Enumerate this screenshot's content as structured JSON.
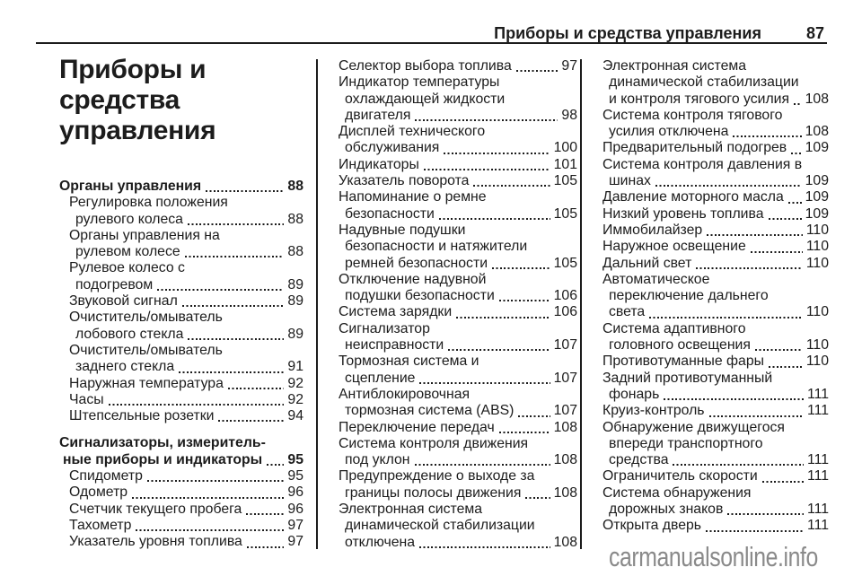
{
  "header": {
    "title": "Приборы и средства управления",
    "page_number": "87"
  },
  "chapter_title_lines": [
    "Приборы и",
    "средства",
    "управления"
  ],
  "colors": {
    "text": "#1c1c1c",
    "watermark": "#8a8a8a"
  },
  "watermark": "carmanualsonline.info",
  "columns": {
    "column1": [
      {
        "style": "main",
        "lines": [
          "Органы управления"
        ],
        "page": "88"
      },
      {
        "style": "sub",
        "lines": [
          "Регулировка положения",
          "рулевого колеса"
        ],
        "page": "88"
      },
      {
        "style": "sub",
        "lines": [
          "Органы управления на",
          "рулевом колесе"
        ],
        "page": "88"
      },
      {
        "style": "sub",
        "lines": [
          "Рулевое колесо с",
          "подогревом"
        ],
        "page": "89"
      },
      {
        "style": "sub",
        "lines": [
          "Звуковой сигнал"
        ],
        "page": "89"
      },
      {
        "style": "sub",
        "lines": [
          "Очиститель/омыватель",
          "лобового стекла"
        ],
        "page": "89"
      },
      {
        "style": "sub",
        "lines": [
          "Очиститель/омыватель",
          "заднего стекла"
        ],
        "page": "91"
      },
      {
        "style": "sub",
        "lines": [
          "Наружная температура"
        ],
        "page": "92"
      },
      {
        "style": "sub",
        "lines": [
          "Часы"
        ],
        "page": "92"
      },
      {
        "style": "sub",
        "lines": [
          "Штепсельные розетки"
        ],
        "page": "94"
      },
      {
        "style": "main",
        "space_before": true,
        "lines": [
          "Сигнализаторы, измеритель-",
          "ные приборы и индикаторы"
        ],
        "page": "95"
      },
      {
        "style": "sub",
        "lines": [
          "Спидометр"
        ],
        "page": "95"
      },
      {
        "style": "sub",
        "lines": [
          "Одометр"
        ],
        "page": "96"
      },
      {
        "style": "sub",
        "lines": [
          "Счетчик текущего пробега"
        ],
        "page": "96"
      },
      {
        "style": "sub",
        "lines": [
          "Тахометр"
        ],
        "page": "97"
      },
      {
        "style": "sub",
        "lines": [
          "Указатель уровня топлива"
        ],
        "page": "97"
      }
    ],
    "column2": [
      {
        "style": "plain",
        "lines": [
          "Селектор выбора топлива"
        ],
        "page": "97"
      },
      {
        "style": "plain",
        "lines": [
          "Индикатор температуры",
          "охлаждающей жидкости",
          "двигателя"
        ],
        "page": "98"
      },
      {
        "style": "plain",
        "lines": [
          "Дисплей технического",
          "обслуживания"
        ],
        "page": "100"
      },
      {
        "style": "plain",
        "lines": [
          "Индикаторы"
        ],
        "page": "101"
      },
      {
        "style": "plain",
        "lines": [
          "Указатель поворота"
        ],
        "page": "105"
      },
      {
        "style": "plain",
        "lines": [
          "Напоминание о ремне",
          "безопасности"
        ],
        "page": "105"
      },
      {
        "style": "plain",
        "lines": [
          "Надувные подушки",
          "безопасности и натяжители",
          "ремней безопасности"
        ],
        "page": "105"
      },
      {
        "style": "plain",
        "lines": [
          "Отключение надувной",
          "подушки безопасности"
        ],
        "page": "106"
      },
      {
        "style": "plain",
        "lines": [
          "Система зарядки"
        ],
        "page": "106"
      },
      {
        "style": "plain",
        "lines": [
          "Сигнализатор",
          "неисправности"
        ],
        "page": "107"
      },
      {
        "style": "plain",
        "lines": [
          "Тормозная система и",
          "сцепление"
        ],
        "page": "107"
      },
      {
        "style": "plain",
        "lines": [
          "Антиблокировочная",
          "тормозная система (ABS)"
        ],
        "page": "107"
      },
      {
        "style": "plain",
        "lines": [
          "Переключение передач"
        ],
        "page": "108"
      },
      {
        "style": "plain",
        "lines": [
          "Система контроля движения",
          "под уклон"
        ],
        "page": "108"
      },
      {
        "style": "plain",
        "lines": [
          "Предупреждение о выходе за",
          "границы полосы движения"
        ],
        "page": "108"
      },
      {
        "style": "plain",
        "lines": [
          "Электронная система",
          "динамической стабилизации",
          "отключена"
        ],
        "page": "108"
      }
    ],
    "column3": [
      {
        "style": "plain",
        "lines": [
          "Электронная система",
          "динамической стабилизации",
          "и контроля тягового усилия"
        ],
        "page": "108"
      },
      {
        "style": "plain",
        "lines": [
          "Система контроля тягового",
          "усилия отключена"
        ],
        "page": "108"
      },
      {
        "style": "plain",
        "lines": [
          "Предварительный подогрев"
        ],
        "page": "109"
      },
      {
        "style": "plain",
        "lines": [
          "Система контроля давления в",
          "шинах"
        ],
        "page": "109"
      },
      {
        "style": "plain",
        "lines": [
          "Давление моторного масла"
        ],
        "page": "109"
      },
      {
        "style": "plain",
        "lines": [
          "Низкий уровень топлива"
        ],
        "page": "109"
      },
      {
        "style": "plain",
        "lines": [
          "Иммобилайзер"
        ],
        "page": "110"
      },
      {
        "style": "plain",
        "lines": [
          "Наружное освещение"
        ],
        "page": "110"
      },
      {
        "style": "plain",
        "lines": [
          "Дальний свет"
        ],
        "page": "110"
      },
      {
        "style": "plain",
        "lines": [
          "Автоматическое",
          "переключение дальнего",
          "света"
        ],
        "page": "110"
      },
      {
        "style": "plain",
        "lines": [
          "Система адаптивного",
          "головного освещения"
        ],
        "page": "110"
      },
      {
        "style": "plain",
        "lines": [
          "Противотуманные фары"
        ],
        "page": "110"
      },
      {
        "style": "plain",
        "lines": [
          "Задний противотуманный",
          "фонарь"
        ],
        "page": "111"
      },
      {
        "style": "plain",
        "lines": [
          "Круиз-контроль"
        ],
        "page": "111"
      },
      {
        "style": "plain",
        "lines": [
          "Обнаружение движущегося",
          "впереди транспортного",
          "средства"
        ],
        "page": "111"
      },
      {
        "style": "plain",
        "lines": [
          "Ограничитель скорости"
        ],
        "page": "111"
      },
      {
        "style": "plain",
        "lines": [
          "Система обнаружения",
          "дорожных знаков"
        ],
        "page": "111"
      },
      {
        "style": "plain",
        "lines": [
          "Открыта дверь"
        ],
        "page": "111"
      }
    ]
  }
}
